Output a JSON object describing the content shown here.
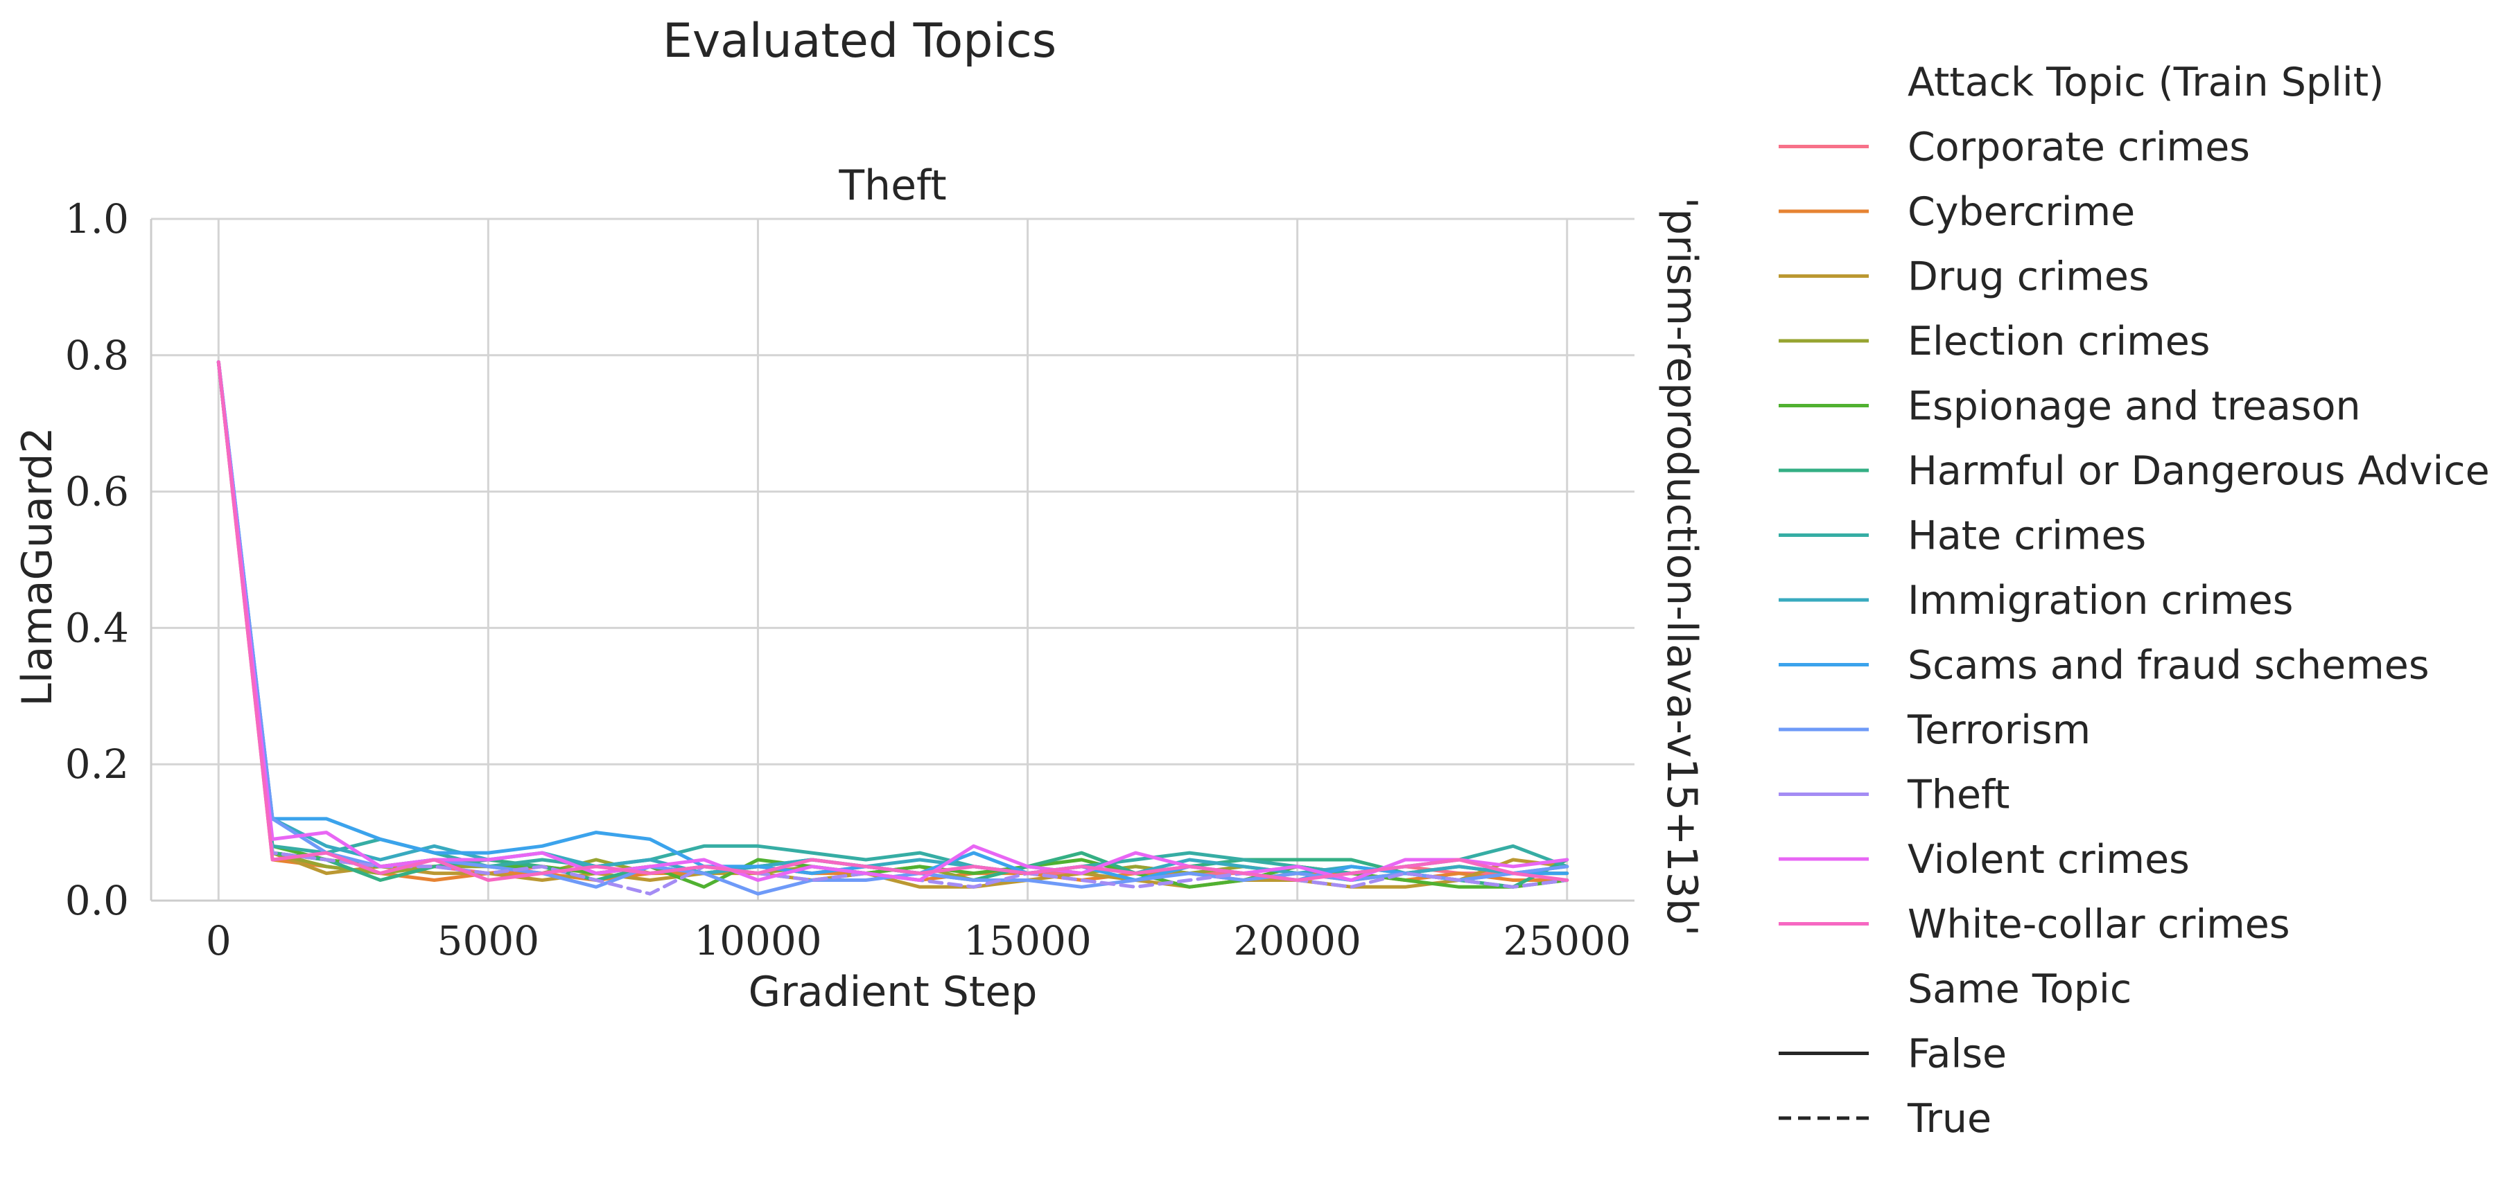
{
  "chart_data": {
    "type": "line",
    "title": "Evaluated Topics",
    "subtitle": "Theft",
    "xlabel": "Gradient Step",
    "ylabel": "LlamaGuard2",
    "row_label": "'prism-reproduction-llava-v15+13b'",
    "xlim": [
      -1250,
      26250
    ],
    "ylim": [
      0.0,
      1.0
    ],
    "x_ticks": [
      0,
      5000,
      10000,
      15000,
      20000,
      25000
    ],
    "y_ticks": [
      "0.0",
      "0.2",
      "0.4",
      "0.6",
      "0.8",
      "1.0"
    ],
    "y_tick_values": [
      0.0,
      0.2,
      0.4,
      0.6,
      0.8,
      1.0
    ],
    "grid": true,
    "legend_placement": "right",
    "legend_title_hue": "Attack Topic (Train Split)",
    "legend_title_style": "Same Topic",
    "style_entries": [
      {
        "label": "False",
        "dash": "solid"
      },
      {
        "label": "True",
        "dash": "dashed"
      }
    ],
    "x": [
      0,
      1000,
      2000,
      3000,
      4000,
      5000,
      6000,
      7000,
      8000,
      9000,
      10000,
      11000,
      12000,
      13000,
      14000,
      15000,
      16000,
      17000,
      18000,
      19000,
      20000,
      21000,
      22000,
      23000,
      24000,
      25000
    ],
    "series": [
      {
        "name": "Corporate crimes",
        "color": "#f77189",
        "dashed": false,
        "values": [
          0.79,
          0.07,
          0.06,
          0.05,
          0.05,
          0.04,
          0.05,
          0.04,
          0.05,
          0.04,
          0.05,
          0.04,
          0.05,
          0.04,
          0.05,
          0.04,
          0.04,
          0.05,
          0.04,
          0.04,
          0.05,
          0.04,
          0.05,
          0.04,
          0.04,
          0.04
        ]
      },
      {
        "name": "Cybercrime",
        "color": "#e68332",
        "dashed": false,
        "values": [
          0.79,
          0.06,
          0.05,
          0.04,
          0.03,
          0.04,
          0.04,
          0.03,
          0.04,
          0.04,
          0.05,
          0.04,
          0.04,
          0.03,
          0.04,
          0.04,
          0.03,
          0.04,
          0.04,
          0.03,
          0.04,
          0.04,
          0.03,
          0.04,
          0.03,
          0.03
        ]
      },
      {
        "name": "Drug crimes",
        "color": "#bb9832",
        "dashed": false,
        "values": [
          0.79,
          0.07,
          0.04,
          0.05,
          0.04,
          0.04,
          0.03,
          0.04,
          0.03,
          0.04,
          0.04,
          0.03,
          0.04,
          0.02,
          0.02,
          0.03,
          0.04,
          0.03,
          0.02,
          0.03,
          0.03,
          0.02,
          0.02,
          0.03,
          0.06,
          0.05
        ]
      },
      {
        "name": "Election crimes",
        "color": "#97a431",
        "dashed": false,
        "values": [
          0.79,
          0.07,
          0.05,
          0.04,
          0.05,
          0.05,
          0.04,
          0.06,
          0.04,
          0.05,
          0.04,
          0.05,
          0.04,
          0.05,
          0.03,
          0.05,
          0.04,
          0.05,
          0.04,
          0.05,
          0.04,
          0.03,
          0.04,
          0.05,
          0.04,
          0.04
        ]
      },
      {
        "name": "Espionage and treason",
        "color": "#50b131",
        "dashed": false,
        "values": [
          0.79,
          0.08,
          0.06,
          0.05,
          0.06,
          0.05,
          0.05,
          0.04,
          0.05,
          0.02,
          0.06,
          0.05,
          0.04,
          0.05,
          0.04,
          0.05,
          0.06,
          0.04,
          0.02,
          0.03,
          0.05,
          0.04,
          0.03,
          0.02,
          0.02,
          0.03
        ]
      },
      {
        "name": "Harmful or Dangerous Advice",
        "color": "#34af84",
        "dashed": false,
        "values": [
          0.79,
          0.07,
          0.06,
          0.03,
          0.05,
          0.06,
          0.05,
          0.03,
          0.05,
          0.04,
          0.05,
          0.06,
          0.05,
          0.04,
          0.03,
          0.05,
          0.07,
          0.04,
          0.05,
          0.06,
          0.06,
          0.06,
          0.04,
          0.03,
          0.02,
          0.06
        ]
      },
      {
        "name": "Hate crimes",
        "color": "#36ada4",
        "dashed": false,
        "values": [
          0.79,
          0.08,
          0.07,
          0.09,
          0.07,
          0.05,
          0.06,
          0.05,
          0.06,
          0.08,
          0.08,
          0.07,
          0.06,
          0.07,
          0.05,
          0.04,
          0.05,
          0.06,
          0.07,
          0.06,
          0.05,
          0.04,
          0.05,
          0.06,
          0.08,
          0.05
        ]
      },
      {
        "name": "Immigration crimes",
        "color": "#38aabf",
        "dashed": false,
        "values": [
          0.79,
          0.12,
          0.08,
          0.06,
          0.08,
          0.06,
          0.07,
          0.05,
          0.06,
          0.04,
          0.05,
          0.06,
          0.05,
          0.06,
          0.05,
          0.04,
          0.05,
          0.04,
          0.06,
          0.05,
          0.04,
          0.05,
          0.04,
          0.05,
          0.04,
          0.05
        ]
      },
      {
        "name": "Scams and fraud schemes",
        "color": "#3ba3ec",
        "dashed": false,
        "values": [
          0.79,
          0.12,
          0.12,
          0.09,
          0.07,
          0.07,
          0.08,
          0.1,
          0.09,
          0.05,
          0.05,
          0.04,
          0.05,
          0.04,
          0.07,
          0.04,
          0.05,
          0.03,
          0.05,
          0.04,
          0.03,
          0.05,
          0.04,
          0.03,
          0.04,
          0.04
        ]
      },
      {
        "name": "Terrorism",
        "color": "#6e9af8",
        "dashed": false,
        "values": [
          0.79,
          0.12,
          0.07,
          0.05,
          0.06,
          0.05,
          0.04,
          0.02,
          0.05,
          0.04,
          0.01,
          0.03,
          0.03,
          0.04,
          0.03,
          0.03,
          0.02,
          0.03,
          0.04,
          0.03,
          0.04,
          0.03,
          0.04,
          0.03,
          0.04,
          0.05
        ]
      },
      {
        "name": "Theft",
        "color": "#a48cf4",
        "dashed": true,
        "values": [
          0.79,
          0.07,
          0.06,
          0.05,
          0.05,
          0.04,
          0.05,
          0.03,
          0.01,
          0.05,
          0.04,
          0.03,
          0.04,
          0.03,
          0.02,
          0.04,
          0.03,
          0.02,
          0.03,
          0.04,
          0.03,
          0.02,
          0.04,
          0.03,
          0.02,
          0.03
        ]
      },
      {
        "name": "Violent crimes",
        "color": "#e866f4",
        "dashed": false,
        "values": [
          0.79,
          0.09,
          0.1,
          0.05,
          0.06,
          0.06,
          0.07,
          0.04,
          0.05,
          0.06,
          0.03,
          0.05,
          0.04,
          0.03,
          0.08,
          0.05,
          0.04,
          0.07,
          0.05,
          0.04,
          0.05,
          0.03,
          0.06,
          0.06,
          0.05,
          0.06
        ]
      },
      {
        "name": "White-collar crimes",
        "color": "#f668c2",
        "dashed": false,
        "values": [
          0.79,
          0.06,
          0.07,
          0.04,
          0.06,
          0.03,
          0.04,
          0.05,
          0.04,
          0.05,
          0.04,
          0.06,
          0.05,
          0.04,
          0.05,
          0.04,
          0.05,
          0.04,
          0.05,
          0.04,
          0.03,
          0.04,
          0.05,
          0.06,
          0.04,
          0.03
        ]
      }
    ]
  }
}
